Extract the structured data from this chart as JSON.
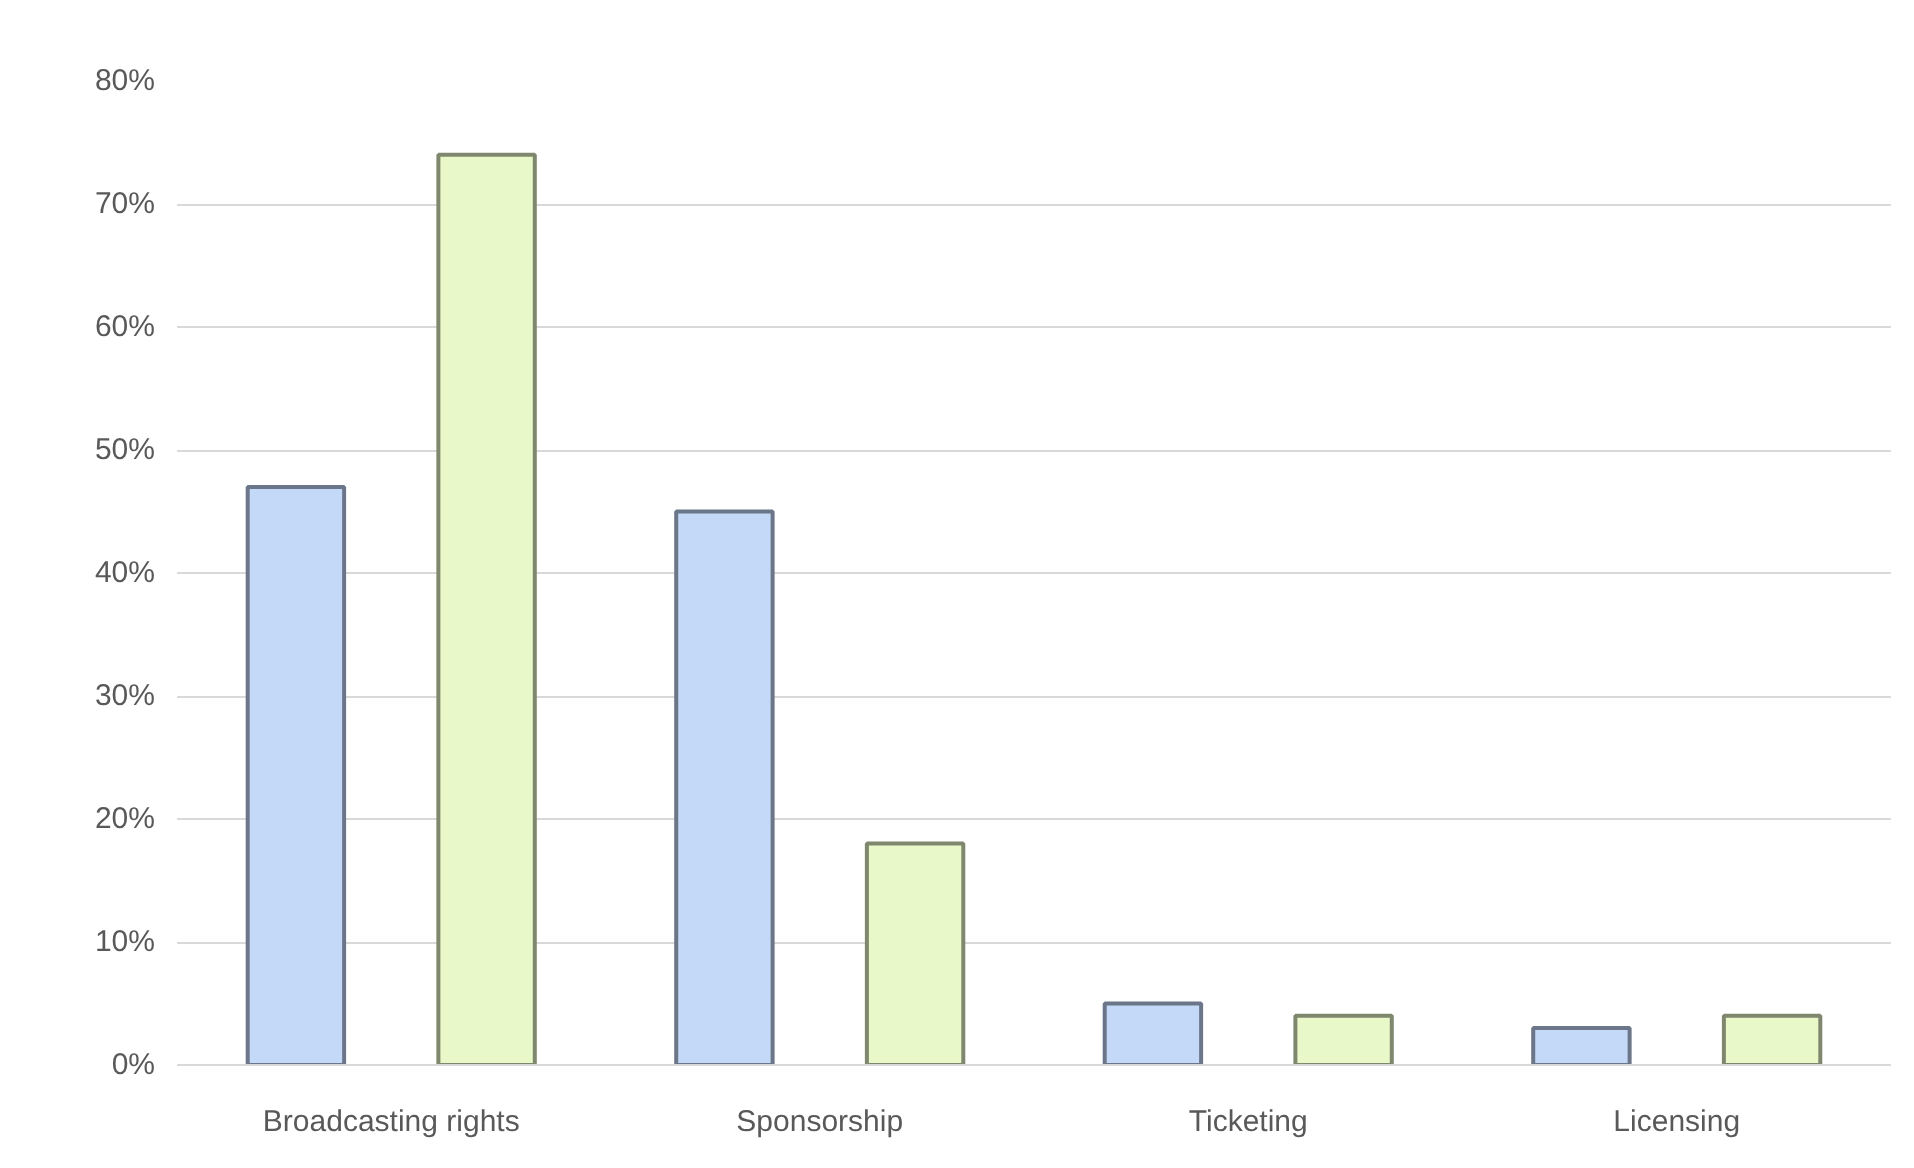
{
  "chart_data": {
    "type": "bar",
    "categories": [
      "Broadcasting rights",
      "Sponsorship",
      "Ticketing",
      "Licensing"
    ],
    "series": [
      {
        "color": "#c4d8f8",
        "values": [
          47,
          45,
          5,
          3
        ]
      },
      {
        "color": "#e8f8c8",
        "values": [
          74,
          18,
          4,
          4
        ]
      }
    ],
    "ylim": [
      0,
      80
    ],
    "yticks": [
      {
        "value": 0,
        "label": "0%"
      },
      {
        "value": 10,
        "label": "10%"
      },
      {
        "value": 20,
        "label": "20%"
      },
      {
        "value": 30,
        "label": "30%"
      },
      {
        "value": 40,
        "label": "40%"
      },
      {
        "value": 50,
        "label": "50%"
      },
      {
        "value": 60,
        "label": "60%"
      },
      {
        "value": 70,
        "label": "70%"
      },
      {
        "value": 80,
        "label": "80%"
      }
    ],
    "grid": "y"
  }
}
